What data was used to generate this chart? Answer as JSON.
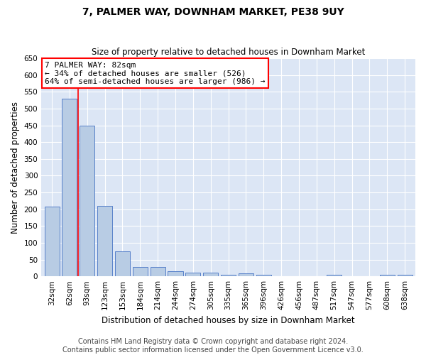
{
  "title": "7, PALMER WAY, DOWNHAM MARKET, PE38 9UY",
  "subtitle": "Size of property relative to detached houses in Downham Market",
  "xlabel": "Distribution of detached houses by size in Downham Market",
  "ylabel": "Number of detached properties",
  "footer_line1": "Contains HM Land Registry data © Crown copyright and database right 2024.",
  "footer_line2": "Contains public sector information licensed under the Open Government Licence v3.0.",
  "categories": [
    "32sqm",
    "62sqm",
    "93sqm",
    "123sqm",
    "153sqm",
    "184sqm",
    "214sqm",
    "244sqm",
    "274sqm",
    "305sqm",
    "335sqm",
    "365sqm",
    "396sqm",
    "426sqm",
    "456sqm",
    "487sqm",
    "517sqm",
    "547sqm",
    "577sqm",
    "608sqm",
    "638sqm"
  ],
  "values": [
    208,
    530,
    450,
    210,
    75,
    27,
    27,
    15,
    12,
    10,
    5,
    8,
    5,
    0,
    0,
    0,
    5,
    0,
    0,
    5,
    5
  ],
  "bar_color": "#b8cce4",
  "bar_edge_color": "#4472c4",
  "highlight_bar_index": 1,
  "red_line_x": 1.5,
  "annotation_text": "7 PALMER WAY: 82sqm\n← 34% of detached houses are smaller (526)\n64% of semi-detached houses are larger (986) →",
  "annotation_box_color": "#ffffff",
  "annotation_box_edge_color": "#ff0000",
  "ylim": [
    0,
    650
  ],
  "yticks": [
    0,
    50,
    100,
    150,
    200,
    250,
    300,
    350,
    400,
    450,
    500,
    550,
    600,
    650
  ],
  "background_color": "#dce6f5",
  "title_fontsize": 10,
  "subtitle_fontsize": 8.5,
  "axis_label_fontsize": 8.5,
  "tick_fontsize": 7.5,
  "footer_fontsize": 7,
  "annotation_fontsize": 8
}
